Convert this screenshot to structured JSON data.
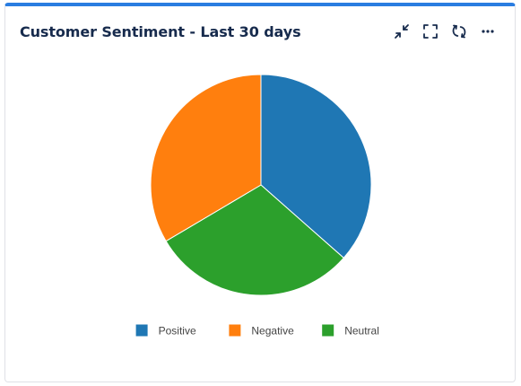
{
  "window": {
    "title": "Customer Sentiment - Last 30 days"
  },
  "toolbar": {
    "buttons": [
      {
        "name": "collapse-button",
        "icon": "collapse-arrows-icon"
      },
      {
        "name": "fullscreen-button",
        "icon": "fullscreen-icon"
      },
      {
        "name": "refresh-button",
        "icon": "refresh-icon"
      },
      {
        "name": "more-options-button",
        "icon": "ellipsis-icon"
      }
    ]
  },
  "chart_data": {
    "type": "pie",
    "title": "",
    "categories": [
      "Positive",
      "Negative",
      "Neutral"
    ],
    "values": [
      36.5,
      33.5,
      30
    ],
    "colors": [
      "#1f77b4",
      "#ff7f0e",
      "#2ca02c"
    ],
    "legend": "bottom",
    "start_angle_deg": 0,
    "direction": "clockwise",
    "slice_order": [
      "Positive",
      "Neutral",
      "Negative"
    ]
  }
}
